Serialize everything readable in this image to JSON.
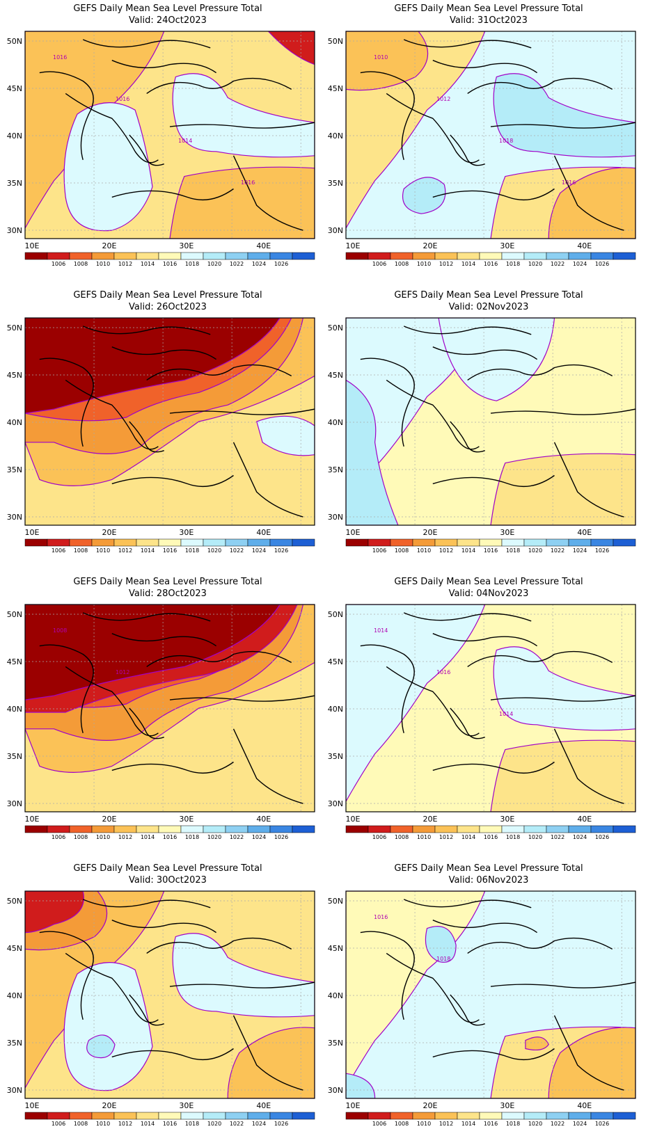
{
  "colorbar": {
    "labels": [
      "1006",
      "1008",
      "1010",
      "1012",
      "1014",
      "1016",
      "1018",
      "1020",
      "1022",
      "1024",
      "1026"
    ],
    "colors": [
      "#9b0000",
      "#d01c1c",
      "#f0622a",
      "#f49b38",
      "#fbc257",
      "#fde48a",
      "#fffab8",
      "#dcfafe",
      "#b4ecf8",
      "#8ed0f2",
      "#5faeea",
      "#3a86e2",
      "#1d5fd4"
    ]
  },
  "axes": {
    "lat_labels": [
      "50N",
      "45N",
      "40N",
      "35N",
      "30N"
    ],
    "lon_labels": [
      "10E",
      "20E",
      "30E",
      "40E"
    ]
  },
  "contour_color": "#a000c8",
  "panels": [
    {
      "title": "GEFS Daily Mean Sea Level Pressure Total",
      "valid": "Valid: 24Oct2023",
      "base": "#fde48a",
      "regions": [
        {
          "level": "#f49b38",
          "shape": "nw"
        },
        {
          "level": "#fbc257",
          "shape": "nwwide"
        },
        {
          "level": "#dcfafe",
          "shape": "centralsea"
        },
        {
          "level": "#dcfafe",
          "shape": "blacksea"
        },
        {
          "level": "#d01c1c",
          "shape": "ne"
        },
        {
          "level": "#fbc257",
          "shape": "sebelt"
        }
      ],
      "labels": [
        "1016",
        "1016",
        "1014",
        "1016"
      ]
    },
    {
      "title": "GEFS Daily Mean Sea Level Pressure Total",
      "valid": "Valid: 31Oct2023",
      "base": "#dcfafe",
      "regions": [
        {
          "level": "#fde48a",
          "shape": "nwwide"
        },
        {
          "level": "#fbc257",
          "shape": "nw"
        },
        {
          "level": "#b4ecf8",
          "shape": "blacksea"
        },
        {
          "level": "#fde48a",
          "shape": "sebelt"
        },
        {
          "level": "#b4ecf8",
          "shape": "blob"
        },
        {
          "level": "#fbc257",
          "shape": "secorner"
        }
      ],
      "labels": [
        "1010",
        "1012",
        "1018",
        "1016"
      ]
    },
    {
      "title": "GEFS Daily Mean Sea Level Pressure Total",
      "valid": "Valid: 26Oct2023",
      "base": "#fde48a",
      "regions": [
        {
          "level": "#fbc257",
          "shape": "bigwest"
        },
        {
          "level": "#f49b38",
          "shape": "bigwest2"
        },
        {
          "level": "#f0622a",
          "shape": "bigwest3"
        },
        {
          "level": "#9b0000",
          "shape": "bignorth"
        },
        {
          "level": "#dcfafe",
          "shape": "eastblob"
        }
      ],
      "labels": []
    },
    {
      "title": "GEFS Daily Mean Sea Level Pressure Total",
      "valid": "Valid: 02Nov2023",
      "base": "#fffab8",
      "regions": [
        {
          "level": "#dcfafe",
          "shape": "nwwide"
        },
        {
          "level": "#b4ecf8",
          "shape": "westcoast"
        },
        {
          "level": "#dcfafe",
          "shape": "northcentral"
        },
        {
          "level": "#fde48a",
          "shape": "sebelt"
        }
      ],
      "labels": []
    },
    {
      "title": "GEFS Daily Mean Sea Level Pressure Total",
      "valid": "Valid: 28Oct2023",
      "base": "#fde48a",
      "regions": [
        {
          "level": "#fbc257",
          "shape": "bigwest"
        },
        {
          "level": "#f49b38",
          "shape": "bigwest2"
        },
        {
          "level": "#f0622a",
          "shape": "bigwest3"
        },
        {
          "level": "#d01c1c",
          "shape": "bignorth2"
        },
        {
          "level": "#9b0000",
          "shape": "bignorth"
        }
      ],
      "labels": [
        "1008",
        "1012"
      ]
    },
    {
      "title": "GEFS Daily Mean Sea Level Pressure Total",
      "valid": "Valid: 04Nov2023",
      "base": "#fffab8",
      "regions": [
        {
          "level": "#dcfafe",
          "shape": "nwwide"
        },
        {
          "level": "#dcfafe",
          "shape": "blacksea"
        },
        {
          "level": "#fde48a",
          "shape": "sebelt"
        }
      ],
      "labels": [
        "1014",
        "1016",
        "1014"
      ]
    },
    {
      "title": "GEFS Daily Mean Sea Level Pressure Total",
      "valid": "Valid: 30Oct2023",
      "base": "#fde48a",
      "regions": [
        {
          "level": "#fbc257",
          "shape": "nwwide"
        },
        {
          "level": "#f49b38",
          "shape": "nw"
        },
        {
          "level": "#d01c1c",
          "shape": "nwcorner"
        },
        {
          "level": "#dcfafe",
          "shape": "centralsea"
        },
        {
          "level": "#dcfafe",
          "shape": "blacksea"
        },
        {
          "level": "#b4ecf8",
          "shape": "smallblob"
        },
        {
          "level": "#fbc257",
          "shape": "secorner"
        }
      ],
      "labels": []
    },
    {
      "title": "GEFS Daily Mean Sea Level Pressure Total",
      "valid": "Valid: 06Nov2023",
      "base": "#dcfafe",
      "regions": [
        {
          "level": "#fffab8",
          "shape": "nwwide"
        },
        {
          "level": "#fde48a",
          "shape": "sebelt"
        },
        {
          "level": "#b4ecf8",
          "shape": "adriatic"
        },
        {
          "level": "#fbc257",
          "shape": "secorner"
        },
        {
          "level": "#fbc257",
          "shape": "cyprusblob"
        },
        {
          "level": "#b4ecf8",
          "shape": "swcorner"
        }
      ],
      "labels": [
        "1016",
        "1018"
      ]
    }
  ]
}
